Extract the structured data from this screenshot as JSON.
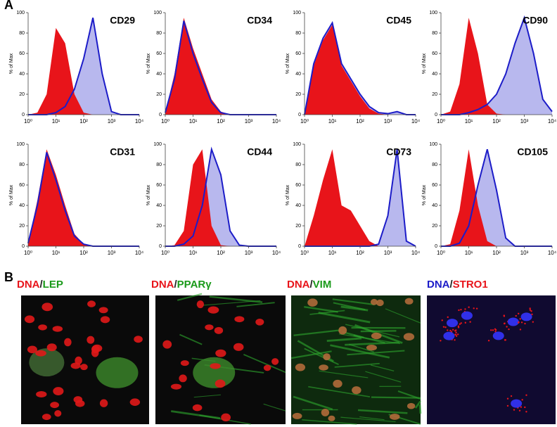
{
  "panel_a_label": "A",
  "panel_b_label": "B",
  "chart_data": [
    {
      "type": "histogram_overlay",
      "title": "CD29",
      "ylabel": "% of Max",
      "xscale": "log",
      "xlim": [
        1,
        10000
      ],
      "ylim": [
        0,
        100
      ],
      "xticks": [
        {
          "value": 1,
          "label": "10⁰"
        },
        {
          "value": 10,
          "label": "10¹"
        },
        {
          "value": 100,
          "label": "10²"
        },
        {
          "value": 1000,
          "label": "10³"
        },
        {
          "value": 10000,
          "label": "10⁴"
        }
      ],
      "yticks": [
        0,
        20,
        40,
        60,
        80,
        100
      ],
      "x": [
        1,
        2.15,
        4.64,
        10,
        21.5,
        46.4,
        100,
        215,
        464,
        1000,
        2150,
        4640,
        10000
      ],
      "series": [
        {
          "color": "#e8141a",
          "fill": "#e8141a",
          "values": [
            0,
            2,
            20,
            85,
            70,
            20,
            2,
            0,
            0,
            0,
            0,
            0,
            0
          ]
        },
        {
          "color": "#1c1cc8",
          "fill": "#b8b8ee",
          "values": [
            0,
            0,
            0,
            2,
            8,
            25,
            55,
            95,
            40,
            3,
            0,
            0,
            0
          ]
        }
      ]
    },
    {
      "type": "histogram_overlay",
      "title": "CD34",
      "ylabel": "% of Max",
      "xscale": "log",
      "xlim": [
        1,
        10000
      ],
      "ylim": [
        0,
        100
      ],
      "xticks": [
        {
          "value": 1,
          "label": "10⁰"
        },
        {
          "value": 10,
          "label": "10¹"
        },
        {
          "value": 100,
          "label": "10²"
        },
        {
          "value": 1000,
          "label": "10³"
        },
        {
          "value": 10000,
          "label": "10⁴"
        }
      ],
      "yticks": [
        0,
        20,
        40,
        60,
        80,
        100
      ],
      "x": [
        1,
        2.15,
        4.64,
        10,
        21.5,
        46.4,
        100,
        215,
        464,
        1000,
        2150,
        4640,
        10000
      ],
      "series": [
        {
          "color": "#e8141a",
          "fill": "#e8141a",
          "values": [
            2,
            40,
            95,
            65,
            40,
            15,
            3,
            0,
            0,
            0,
            0,
            0,
            0
          ]
        },
        {
          "color": "#1c1cc8",
          "fill": "#b8b8ee",
          "values": [
            2,
            35,
            92,
            60,
            35,
            12,
            2,
            0,
            0,
            0,
            0,
            0,
            0
          ]
        }
      ]
    },
    {
      "type": "histogram_overlay",
      "title": "CD45",
      "ylabel": "% of Max",
      "xscale": "log",
      "xlim": [
        1,
        10000
      ],
      "ylim": [
        0,
        100
      ],
      "xticks": [
        {
          "value": 1,
          "label": "10⁰"
        },
        {
          "value": 10,
          "label": "10¹"
        },
        {
          "value": 100,
          "label": "10²"
        },
        {
          "value": 1000,
          "label": "10³"
        },
        {
          "value": 10000,
          "label": "10⁴"
        }
      ],
      "yticks": [
        0,
        20,
        40,
        60,
        80,
        100
      ],
      "x": [
        1,
        2.15,
        4.64,
        10,
        21.5,
        46.4,
        100,
        215,
        464,
        1000,
        2150,
        4640,
        10000
      ],
      "series": [
        {
          "color": "#e8141a",
          "fill": "#e8141a",
          "values": [
            0,
            48,
            73,
            88,
            48,
            33,
            18,
            6,
            1,
            0,
            0,
            0,
            0
          ]
        },
        {
          "color": "#1c1cc8",
          "fill": "#b8b8ee",
          "values": [
            0,
            50,
            75,
            90,
            50,
            35,
            20,
            8,
            2,
            1,
            3,
            0,
            0
          ]
        }
      ]
    },
    {
      "type": "histogram_overlay",
      "title": "CD90",
      "ylabel": "% of Max",
      "xscale": "log",
      "xlim": [
        1,
        10000
      ],
      "ylim": [
        0,
        100
      ],
      "xticks": [
        {
          "value": 1,
          "label": "10⁰"
        },
        {
          "value": 10,
          "label": "10¹"
        },
        {
          "value": 100,
          "label": "10²"
        },
        {
          "value": 1000,
          "label": "10³"
        },
        {
          "value": 10000,
          "label": "10⁴"
        }
      ],
      "yticks": [
        0,
        20,
        40,
        60,
        80,
        100
      ],
      "x": [
        1,
        2.15,
        4.64,
        10,
        21.5,
        46.4,
        100,
        215,
        464,
        1000,
        2150,
        4640,
        10000
      ],
      "series": [
        {
          "color": "#e8141a",
          "fill": "#e8141a",
          "values": [
            0,
            3,
            30,
            95,
            60,
            10,
            1,
            0,
            0,
            0,
            0,
            0,
            0
          ]
        },
        {
          "color": "#1c1cc8",
          "fill": "#b8b8ee",
          "values": [
            0,
            0,
            0,
            2,
            5,
            10,
            20,
            40,
            70,
            95,
            60,
            15,
            3
          ]
        }
      ]
    },
    {
      "type": "histogram_overlay",
      "title": "CD31",
      "ylabel": "% of Max",
      "xscale": "log",
      "xlim": [
        1,
        10000
      ],
      "ylim": [
        0,
        100
      ],
      "xticks": [
        {
          "value": 1,
          "label": "10⁰"
        },
        {
          "value": 10,
          "label": "10¹"
        },
        {
          "value": 100,
          "label": "10²"
        },
        {
          "value": 1000,
          "label": "10³"
        },
        {
          "value": 10000,
          "label": "10⁴"
        }
      ],
      "yticks": [
        0,
        20,
        40,
        60,
        80,
        100
      ],
      "x": [
        1,
        2.15,
        4.64,
        10,
        21.5,
        46.4,
        100,
        215,
        464,
        1000,
        2150,
        4640,
        10000
      ],
      "series": [
        {
          "color": "#e8141a",
          "fill": "#e8141a",
          "values": [
            3,
            45,
            95,
            70,
            40,
            12,
            2,
            0,
            0,
            0,
            0,
            0,
            0
          ]
        },
        {
          "color": "#1c1cc8",
          "fill": "#b8b8ee",
          "values": [
            3,
            40,
            92,
            65,
            35,
            10,
            2,
            0,
            0,
            0,
            0,
            0,
            0
          ]
        }
      ]
    },
    {
      "type": "histogram_overlay",
      "title": "CD44",
      "ylabel": "% of Max",
      "xscale": "log",
      "xlim": [
        1,
        10000
      ],
      "ylim": [
        0,
        100
      ],
      "xticks": [
        {
          "value": 1,
          "label": "10⁰"
        },
        {
          "value": 10,
          "label": "10¹"
        },
        {
          "value": 100,
          "label": "10²"
        },
        {
          "value": 1000,
          "label": "10³"
        },
        {
          "value": 10000,
          "label": "10⁴"
        }
      ],
      "yticks": [
        0,
        20,
        40,
        60,
        80,
        100
      ],
      "x": [
        1,
        2.15,
        4.64,
        10,
        21.5,
        46.4,
        100,
        215,
        464,
        1000,
        2150,
        4640,
        10000
      ],
      "series": [
        {
          "color": "#e8141a",
          "fill": "#e8141a",
          "values": [
            0,
            1,
            15,
            80,
            95,
            20,
            1,
            0,
            0,
            0,
            0,
            0,
            0
          ]
        },
        {
          "color": "#1c1cc8",
          "fill": "#b8b8ee",
          "values": [
            0,
            0,
            2,
            10,
            40,
            95,
            70,
            15,
            1,
            0,
            0,
            0,
            0
          ]
        }
      ]
    },
    {
      "type": "histogram_overlay",
      "title": "CD73",
      "ylabel": "% of Max",
      "xscale": "log",
      "xlim": [
        1,
        10000
      ],
      "ylim": [
        0,
        100
      ],
      "xticks": [
        {
          "value": 1,
          "label": "10⁰"
        },
        {
          "value": 10,
          "label": "10¹"
        },
        {
          "value": 100,
          "label": "10²"
        },
        {
          "value": 1000,
          "label": "10³"
        },
        {
          "value": 10000,
          "label": "10⁴"
        }
      ],
      "yticks": [
        0,
        20,
        40,
        60,
        80,
        100
      ],
      "x": [
        1,
        2.15,
        4.64,
        10,
        21.5,
        46.4,
        100,
        215,
        464,
        1000,
        2150,
        4640,
        10000
      ],
      "series": [
        {
          "color": "#e8141a",
          "fill": "#e8141a",
          "values": [
            0,
            30,
            65,
            95,
            40,
            35,
            20,
            5,
            0,
            0,
            0,
            0,
            0
          ]
        },
        {
          "color": "#1c1cc8",
          "fill": "#b8b8ee",
          "values": [
            0,
            0,
            0,
            0,
            0,
            0,
            0,
            0,
            2,
            30,
            95,
            5,
            0
          ]
        }
      ]
    },
    {
      "type": "histogram_overlay",
      "title": "CD105",
      "ylabel": "% of Max",
      "xscale": "log",
      "xlim": [
        1,
        10000
      ],
      "ylim": [
        0,
        100
      ],
      "xticks": [
        {
          "value": 1,
          "label": "10⁰"
        },
        {
          "value": 10,
          "label": "10¹"
        },
        {
          "value": 100,
          "label": "10²"
        },
        {
          "value": 1000,
          "label": "10³"
        },
        {
          "value": 10000,
          "label": "10⁴"
        }
      ],
      "yticks": [
        0,
        20,
        40,
        60,
        80,
        100
      ],
      "x": [
        1,
        2.15,
        4.64,
        10,
        21.5,
        46.4,
        100,
        215,
        464,
        1000,
        2150,
        4640,
        10000
      ],
      "series": [
        {
          "color": "#e8141a",
          "fill": "#e8141a",
          "values": [
            0,
            2,
            35,
            95,
            40,
            5,
            0,
            0,
            0,
            0,
            0,
            0,
            0
          ]
        },
        {
          "color": "#1c1cc8",
          "fill": "#b8b8ee",
          "values": [
            0,
            0,
            3,
            20,
            60,
            95,
            55,
            8,
            0,
            0,
            0,
            0,
            0
          ]
        }
      ]
    }
  ],
  "images": [
    {
      "labels": [
        "DNA",
        "/",
        "LEP"
      ],
      "colors": [
        "#e8141a",
        "#222222",
        "#1a9a1a"
      ]
    },
    {
      "labels": [
        "DNA",
        "/",
        "PPARγ"
      ],
      "colors": [
        "#e8141a",
        "#222222",
        "#1a9a1a"
      ]
    },
    {
      "labels": [
        "DNA",
        "/",
        "VIM"
      ],
      "colors": [
        "#e8141a",
        "#222222",
        "#1a9a1a"
      ]
    },
    {
      "labels": [
        "DNA",
        "/",
        "STRO1"
      ],
      "colors": [
        "#1c1cc8",
        "#222222",
        "#e8141a"
      ]
    }
  ]
}
